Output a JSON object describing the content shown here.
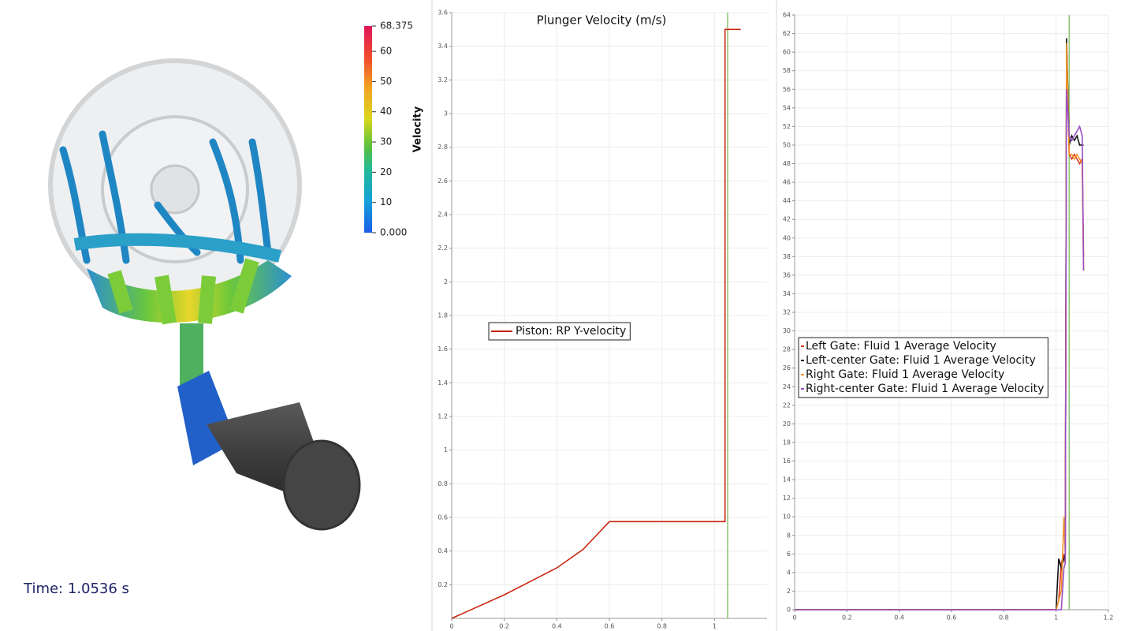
{
  "viewport": {
    "time_label": "Time: 1.0536 s",
    "colorbar": {
      "title": "Velocity",
      "range": [
        0,
        68.375
      ],
      "ticks": [
        68.375,
        60,
        50,
        40,
        30,
        20,
        10,
        {
          "value": 0,
          "label": "0.000"
        }
      ]
    }
  },
  "chart_data": [
    {
      "type": "line",
      "title": "Plunger Velocity (m/s)",
      "x": [
        0,
        0.1,
        0.2,
        0.3,
        0.4,
        0.5,
        0.6,
        1.04,
        1.04,
        1.1
      ],
      "series": [
        {
          "name": "Piston: RP Y-velocity",
          "color": "#c8250f",
          "values": [
            0,
            0.07,
            0.14,
            0.22,
            0.3,
            0.41,
            0.575,
            0.575,
            3.5,
            3.5
          ]
        }
      ],
      "xlim": [
        0,
        1.2
      ],
      "ylim": [
        0,
        3.6
      ],
      "xticks": [
        0,
        0.2,
        0.4,
        0.6,
        0.8,
        1
      ],
      "yticks": [
        0.2,
        0.4,
        0.6,
        0.8,
        1,
        1.2,
        1.4,
        1.6,
        1.8,
        2,
        2.2,
        2.4,
        2.6,
        2.8,
        3,
        3.2,
        3.4,
        3.6
      ],
      "grid": true,
      "legend": "center-left",
      "time_marker": {
        "x": 1.05,
        "color": "#8cc474"
      }
    },
    {
      "type": "line",
      "x": [
        0,
        1.0,
        1.01,
        1.02,
        1.03,
        1.035,
        1.04,
        1.05,
        1.06,
        1.07,
        1.08,
        1.09,
        1.1,
        1.105
      ],
      "series": [
        {
          "name": "Left Gate: Fluid 1 Average Velocity",
          "color": "#d9381e",
          "values": [
            0,
            0,
            1,
            5,
            6,
            5,
            61,
            49,
            48.5,
            49,
            48.5,
            48,
            48.5,
            38
          ]
        },
        {
          "name": "Left-center Gate: Fluid 1 Average Velocity",
          "color": "#111111",
          "values": [
            0,
            0,
            5.5,
            4.5,
            5.5,
            6,
            61.5,
            50,
            51,
            50.5,
            51,
            50,
            50,
            50
          ]
        },
        {
          "name": "Right Gate: Fluid 1 Average Velocity",
          "color": "#f0932b",
          "values": [
            0,
            0,
            1,
            2,
            10,
            6,
            61,
            49,
            49,
            48.5,
            49,
            48.5,
            48,
            36.5
          ]
        },
        {
          "name": "Right-center Gate: Fluid 1 Average Velocity",
          "color": "#9b4fc4",
          "values": [
            0,
            0,
            0,
            0,
            4.5,
            5,
            56,
            51,
            50.5,
            51,
            51.5,
            52,
            51,
            36.5
          ]
        }
      ],
      "xlim": [
        0,
        1.2
      ],
      "ylim": [
        0,
        64
      ],
      "xticks": [
        0,
        0.2,
        0.4,
        0.6,
        0.8,
        1,
        1.2
      ],
      "yticks": [
        0,
        2,
        4,
        6,
        8,
        10,
        12,
        14,
        16,
        18,
        20,
        22,
        24,
        26,
        28,
        30,
        32,
        34,
        36,
        38,
        40,
        42,
        44,
        46,
        48,
        50,
        52,
        54,
        56,
        58,
        60,
        62,
        64
      ],
      "grid": true,
      "legend": "center-left",
      "time_marker": {
        "x": 1.05,
        "color": "#8cc474"
      }
    }
  ]
}
